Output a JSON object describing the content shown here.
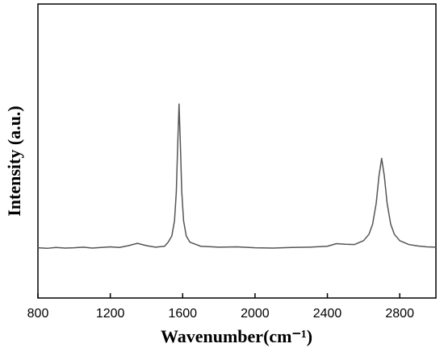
{
  "chart_data": {
    "type": "line",
    "x_label": "Wavenumber(cm⁻¹)",
    "y_label": "Intensity (a.u.)",
    "x": [
      800,
      850,
      900,
      950,
      1000,
      1050,
      1100,
      1150,
      1200,
      1250,
      1300,
      1350,
      1400,
      1450,
      1500,
      1520,
      1540,
      1555,
      1565,
      1572,
      1580,
      1588,
      1595,
      1605,
      1620,
      1640,
      1700,
      1800,
      1900,
      2000,
      2100,
      2200,
      2300,
      2400,
      2450,
      2500,
      2550,
      2600,
      2630,
      2650,
      2670,
      2685,
      2700,
      2715,
      2730,
      2750,
      2770,
      2800,
      2850,
      2900,
      2950,
      3000
    ],
    "series": [
      {
        "color": "#555555",
        "values": [
          17.1,
          16.9,
          17.2,
          17.0,
          17.1,
          17.3,
          17.0,
          17.2,
          17.4,
          17.2,
          17.8,
          18.6,
          17.8,
          17.3,
          17.6,
          19.0,
          21.1,
          26.3,
          36.2,
          51.0,
          66.0,
          51.0,
          36.2,
          26.3,
          21.1,
          19.0,
          17.6,
          17.3,
          17.4,
          17.1,
          17.0,
          17.2,
          17.3,
          17.6,
          18.5,
          18.3,
          18.2,
          19.5,
          21.7,
          25.1,
          32.3,
          41.4,
          47.5,
          41.4,
          32.3,
          25.1,
          21.7,
          19.5,
          18.2,
          17.7,
          17.4,
          17.3
        ]
      }
    ],
    "xlim": [
      800,
      3000
    ],
    "xticks": [
      800,
      1200,
      1600,
      2000,
      2400,
      2800
    ],
    "ylim": [
      0,
      100
    ]
  }
}
